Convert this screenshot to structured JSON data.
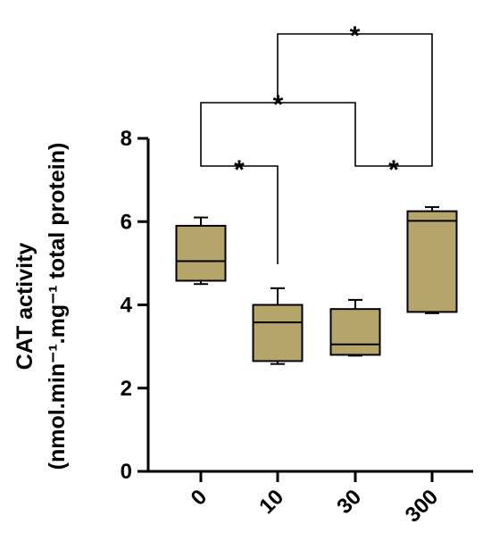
{
  "chart_data": {
    "type": "box",
    "categories": [
      "0",
      "10",
      "30",
      "300"
    ],
    "ylabel_line1": "CAT activity",
    "ylabel_line2": "(nmol.min⁻¹.mg⁻¹ total protein)",
    "ylim": [
      0,
      8
    ],
    "yticks": [
      0,
      2,
      4,
      6,
      8
    ],
    "box_color": "#b5a56a",
    "series": [
      {
        "category": "0",
        "min": 4.5,
        "q1": 4.58,
        "median": 5.05,
        "q3": 5.9,
        "max": 6.1
      },
      {
        "category": "10",
        "min": 2.58,
        "q1": 2.65,
        "median": 3.58,
        "q3": 4.0,
        "max": 4.4
      },
      {
        "category": "30",
        "min": 2.78,
        "q1": 2.8,
        "median": 3.05,
        "q3": 3.9,
        "max": 4.12
      },
      {
        "category": "300",
        "min": 3.8,
        "q1": 3.83,
        "median": 6.02,
        "q3": 6.25,
        "max": 6.35
      }
    ],
    "significance": [
      {
        "from": "0",
        "to": "10",
        "label": "*"
      },
      {
        "from": "30",
        "to": "300",
        "label": "*"
      },
      {
        "from": "0",
        "to": "30",
        "label": "*"
      },
      {
        "from": "10",
        "to": "300",
        "label": "*"
      }
    ]
  }
}
